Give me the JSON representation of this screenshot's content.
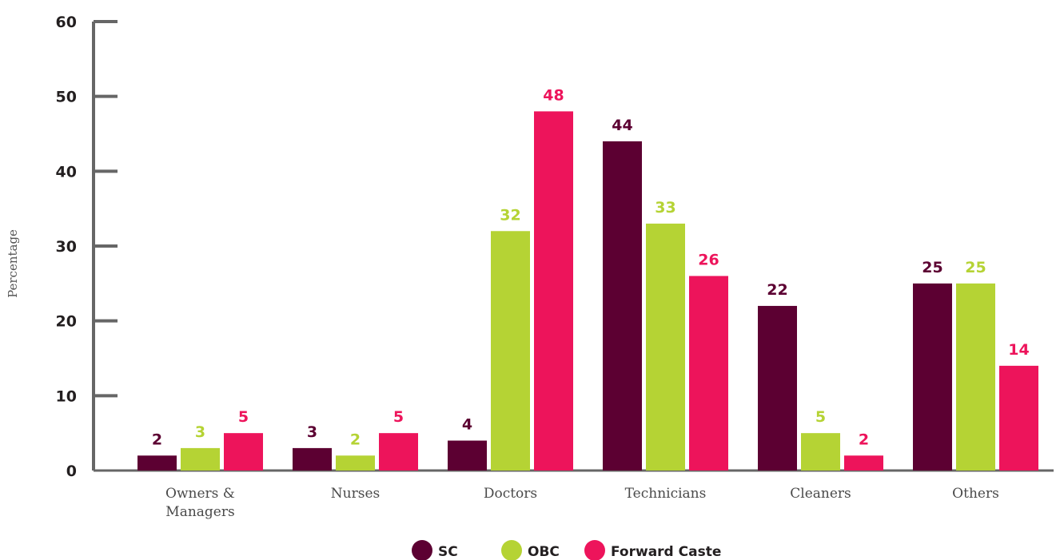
{
  "chart_data": {
    "type": "bar",
    "title": "",
    "xlabel": "",
    "ylabel": "Percentage",
    "ylim": [
      0,
      60
    ],
    "yticks": [
      0,
      10,
      20,
      30,
      40,
      50,
      60
    ],
    "grid": false,
    "legend_position": "bottom",
    "categories": [
      [
        "Owners &",
        "Managers"
      ],
      [
        "Nurses"
      ],
      [
        "Doctors"
      ],
      [
        "Technicians"
      ],
      [
        "Cleaners"
      ],
      [
        "Others"
      ]
    ],
    "series": [
      {
        "name": "SC",
        "color": "#5c0032",
        "values": [
          2,
          3,
          4,
          44,
          22,
          25
        ]
      },
      {
        "name": "OBC",
        "color": "#b5d334",
        "values": [
          3,
          2,
          32,
          33,
          5,
          25
        ]
      },
      {
        "name": "Forward Caste",
        "color": "#ed145b",
        "values": [
          5,
          5,
          48,
          26,
          2,
          14
        ]
      }
    ],
    "axis_color": "#666666"
  }
}
